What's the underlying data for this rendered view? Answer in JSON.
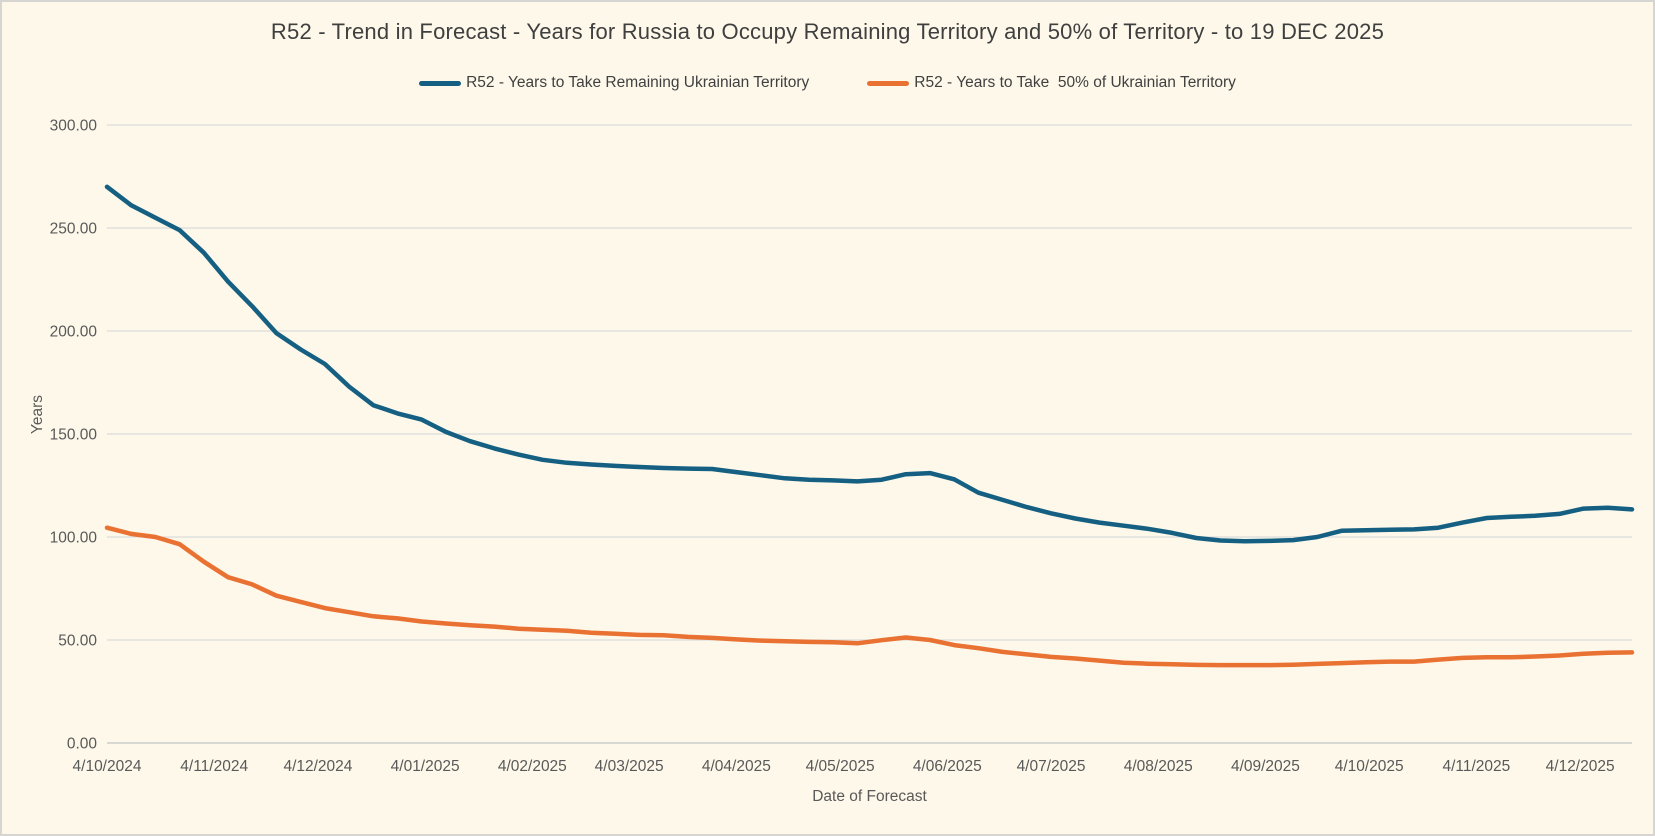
{
  "chart_data": {
    "type": "line",
    "title": "R52 - Trend in Forecast - Years for Russia to Occupy Remaining Territory and 50% of Territory - to 19 DEC 2025",
    "xlabel": "Date of Forecast",
    "ylabel": "Years",
    "ylim": [
      0,
      300
    ],
    "x_range_days": [
      0,
      441
    ],
    "grid": true,
    "legend_position": "top",
    "background_color": "#FDF8EA",
    "gridline_color": "#DBDBDB",
    "y_ticks": [
      {
        "label": "300.00",
        "value": 300
      },
      {
        "label": "250.00",
        "value": 250
      },
      {
        "label": "200.00",
        "value": 200
      },
      {
        "label": "150.00",
        "value": 150
      },
      {
        "label": "100.00",
        "value": 100
      },
      {
        "label": "50.00",
        "value": 50
      },
      {
        "label": "0.00",
        "value": 0
      }
    ],
    "x_ticks": [
      {
        "label": "4/10/2024",
        "day": 0
      },
      {
        "label": "4/11/2024",
        "day": 31
      },
      {
        "label": "4/12/2024",
        "day": 61
      },
      {
        "label": "4/01/2025",
        "day": 92
      },
      {
        "label": "4/02/2025",
        "day": 123
      },
      {
        "label": "4/03/2025",
        "day": 151
      },
      {
        "label": "4/04/2025",
        "day": 182
      },
      {
        "label": "4/05/2025",
        "day": 212
      },
      {
        "label": "4/06/2025",
        "day": 243
      },
      {
        "label": "4/07/2025",
        "day": 273
      },
      {
        "label": "4/08/2025",
        "day": 304
      },
      {
        "label": "4/09/2025",
        "day": 335
      },
      {
        "label": "4/10/2025",
        "day": 365
      },
      {
        "label": "4/11/2025",
        "day": 396
      },
      {
        "label": "4/12/2025",
        "day": 426
      }
    ],
    "series": [
      {
        "name": "R52 - Years to Take Remaining Ukrainian Territory",
        "color": "#156082",
        "x_days": [
          0,
          7,
          14,
          21,
          28,
          35,
          42,
          49,
          56,
          63,
          70,
          77,
          84,
          91,
          98,
          105,
          112,
          119,
          126,
          133,
          140,
          147,
          154,
          161,
          168,
          175,
          182,
          189,
          196,
          203,
          210,
          217,
          224,
          231,
          238,
          245,
          252,
          259,
          266,
          273,
          280,
          287,
          294,
          301,
          308,
          315,
          322,
          329,
          336,
          343,
          350,
          357,
          364,
          371,
          378,
          385,
          392,
          399,
          406,
          413,
          420,
          427,
          434,
          441
        ],
        "values": [
          270,
          261,
          255,
          249,
          238,
          224,
          212,
          199,
          191,
          184,
          173,
          164,
          160,
          157,
          151,
          146.5,
          143,
          140,
          137.5,
          136,
          135.2,
          134.5,
          134,
          133.5,
          133.2,
          133,
          131.5,
          130,
          128.5,
          127.8,
          127.5,
          127,
          127.8,
          130.5,
          131,
          128,
          121.5,
          118,
          114.5,
          111.5,
          109,
          107,
          105.5,
          104,
          102,
          99.5,
          98.3,
          97.9,
          98.1,
          98.5,
          100,
          103,
          103.3,
          103.5,
          103.7,
          104.5,
          107,
          109.2,
          109.8,
          110.3,
          111.2,
          113.8,
          114.2,
          113.4
        ]
      },
      {
        "name": "R52 - Years to Take  50% of Ukrainian Territory",
        "color": "#E97132",
        "x_days": [
          0,
          7,
          14,
          21,
          28,
          35,
          42,
          49,
          56,
          63,
          70,
          77,
          84,
          91,
          98,
          105,
          112,
          119,
          126,
          133,
          140,
          147,
          154,
          161,
          168,
          175,
          182,
          189,
          196,
          203,
          210,
          217,
          224,
          231,
          238,
          245,
          252,
          259,
          266,
          273,
          280,
          287,
          294,
          301,
          308,
          315,
          322,
          329,
          336,
          343,
          350,
          357,
          364,
          371,
          378,
          385,
          392,
          399,
          406,
          413,
          420,
          427,
          434,
          441
        ],
        "values": [
          104.5,
          101.5,
          100,
          96.5,
          88,
          80.5,
          77,
          71.5,
          68.5,
          65.5,
          63.5,
          61.5,
          60.5,
          59,
          58,
          57.2,
          56.5,
          55.5,
          55,
          54.5,
          53.5,
          53,
          52.5,
          52.3,
          51.5,
          51,
          50.3,
          49.7,
          49.4,
          49.1,
          48.9,
          48.4,
          49.9,
          51.2,
          50,
          47.5,
          46,
          44.2,
          43,
          41.8,
          41,
          40,
          39,
          38.5,
          38.2,
          37.9,
          37.8,
          37.8,
          37.8,
          38,
          38.4,
          38.8,
          39.2,
          39.5,
          39.5,
          40.5,
          41.3,
          41.6,
          41.6,
          42,
          42.5,
          43.3,
          43.8,
          44
        ]
      }
    ]
  }
}
